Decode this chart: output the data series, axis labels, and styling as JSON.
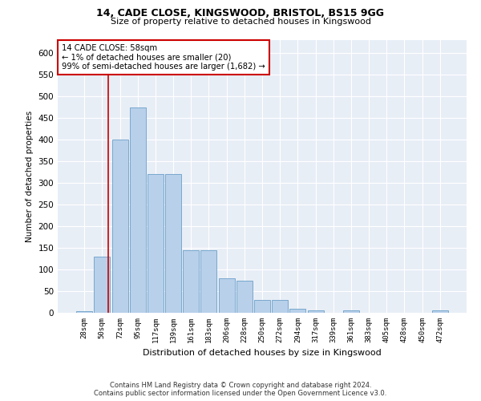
{
  "title1": "14, CADE CLOSE, KINGSWOOD, BRISTOL, BS15 9GG",
  "title2": "Size of property relative to detached houses in Kingswood",
  "xlabel": "Distribution of detached houses by size in Kingswood",
  "ylabel": "Number of detached properties",
  "bar_color": "#b8d0ea",
  "bar_edge_color": "#6a9fc8",
  "bg_color": "#e8eef6",
  "categories": [
    "28sqm",
    "50sqm",
    "72sqm",
    "95sqm",
    "117sqm",
    "139sqm",
    "161sqm",
    "183sqm",
    "206sqm",
    "228sqm",
    "250sqm",
    "272sqm",
    "294sqm",
    "317sqm",
    "339sqm",
    "361sqm",
    "383sqm",
    "405sqm",
    "428sqm",
    "450sqm",
    "472sqm"
  ],
  "values": [
    3,
    130,
    400,
    475,
    320,
    320,
    145,
    145,
    80,
    75,
    30,
    30,
    10,
    5,
    0,
    5,
    0,
    0,
    0,
    0,
    5
  ],
  "vline_x": 1.35,
  "vline_color": "#cc0000",
  "annotation_text": "14 CADE CLOSE: 58sqm\n← 1% of detached houses are smaller (20)\n99% of semi-detached houses are larger (1,682) →",
  "annotation_box_color": "#cc0000",
  "ylim": [
    0,
    630
  ],
  "yticks": [
    0,
    50,
    100,
    150,
    200,
    250,
    300,
    350,
    400,
    450,
    500,
    550,
    600
  ],
  "footer1": "Contains HM Land Registry data © Crown copyright and database right 2024.",
  "footer2": "Contains public sector information licensed under the Open Government Licence v3.0."
}
